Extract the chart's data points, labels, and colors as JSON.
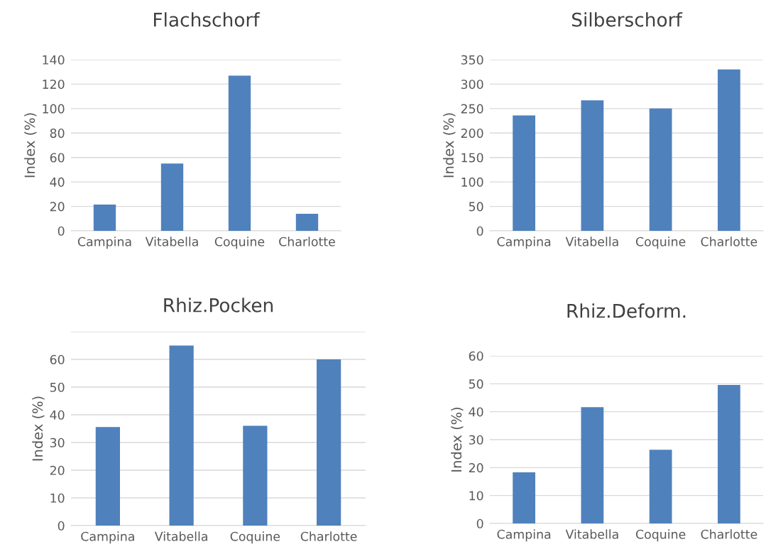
{
  "chart_data": [
    {
      "type": "bar",
      "title": "Flachschorf",
      "ylabel": "Index (%)",
      "categories": [
        "Campina",
        "Vitabella",
        "Coquine",
        "Charlotte"
      ],
      "values": [
        21.5,
        55,
        127,
        14
      ],
      "color": "#4f81bd",
      "ylim": [
        0,
        140
      ],
      "yticks": [
        0,
        20,
        40,
        60,
        80,
        100,
        120,
        140
      ],
      "grid": "y"
    },
    {
      "type": "bar",
      "title": "Silberschorf",
      "ylabel": "Index (%)",
      "categories": [
        "Campina",
        "Vitabella",
        "Coquine",
        "Charlotte"
      ],
      "values": [
        236,
        267,
        250,
        330
      ],
      "color": "#4f81bd",
      "ylim": [
        0,
        350
      ],
      "yticks": [
        0,
        50,
        100,
        150,
        200,
        250,
        300,
        350
      ],
      "grid": "y"
    },
    {
      "type": "bar",
      "title": "Rhiz.Pocken",
      "ylabel": "Index (%)",
      "categories": [
        "Campina",
        "Vitabella",
        "Coquine",
        "Charlotte"
      ],
      "values": [
        35.6,
        65,
        36,
        60
      ],
      "color": "#4f81bd",
      "ylim": [
        0,
        70
      ],
      "yticks": [
        0,
        10,
        20,
        30,
        40,
        50,
        60,
        {
          "value": 70,
          "label": null
        }
      ],
      "grid": "y"
    },
    {
      "type": "bar",
      "title": "Rhiz.Deform.",
      "ylabel": "Index (%)",
      "categories": [
        "Campina",
        "Vitabella",
        "Coquine",
        "Charlotte"
      ],
      "values": [
        18.3,
        41.6,
        26.4,
        49.6
      ],
      "color": "#4f81bd",
      "ylim": [
        0,
        60
      ],
      "yticks": [
        0,
        10,
        20,
        30,
        40,
        50,
        60
      ],
      "grid": "y"
    }
  ]
}
